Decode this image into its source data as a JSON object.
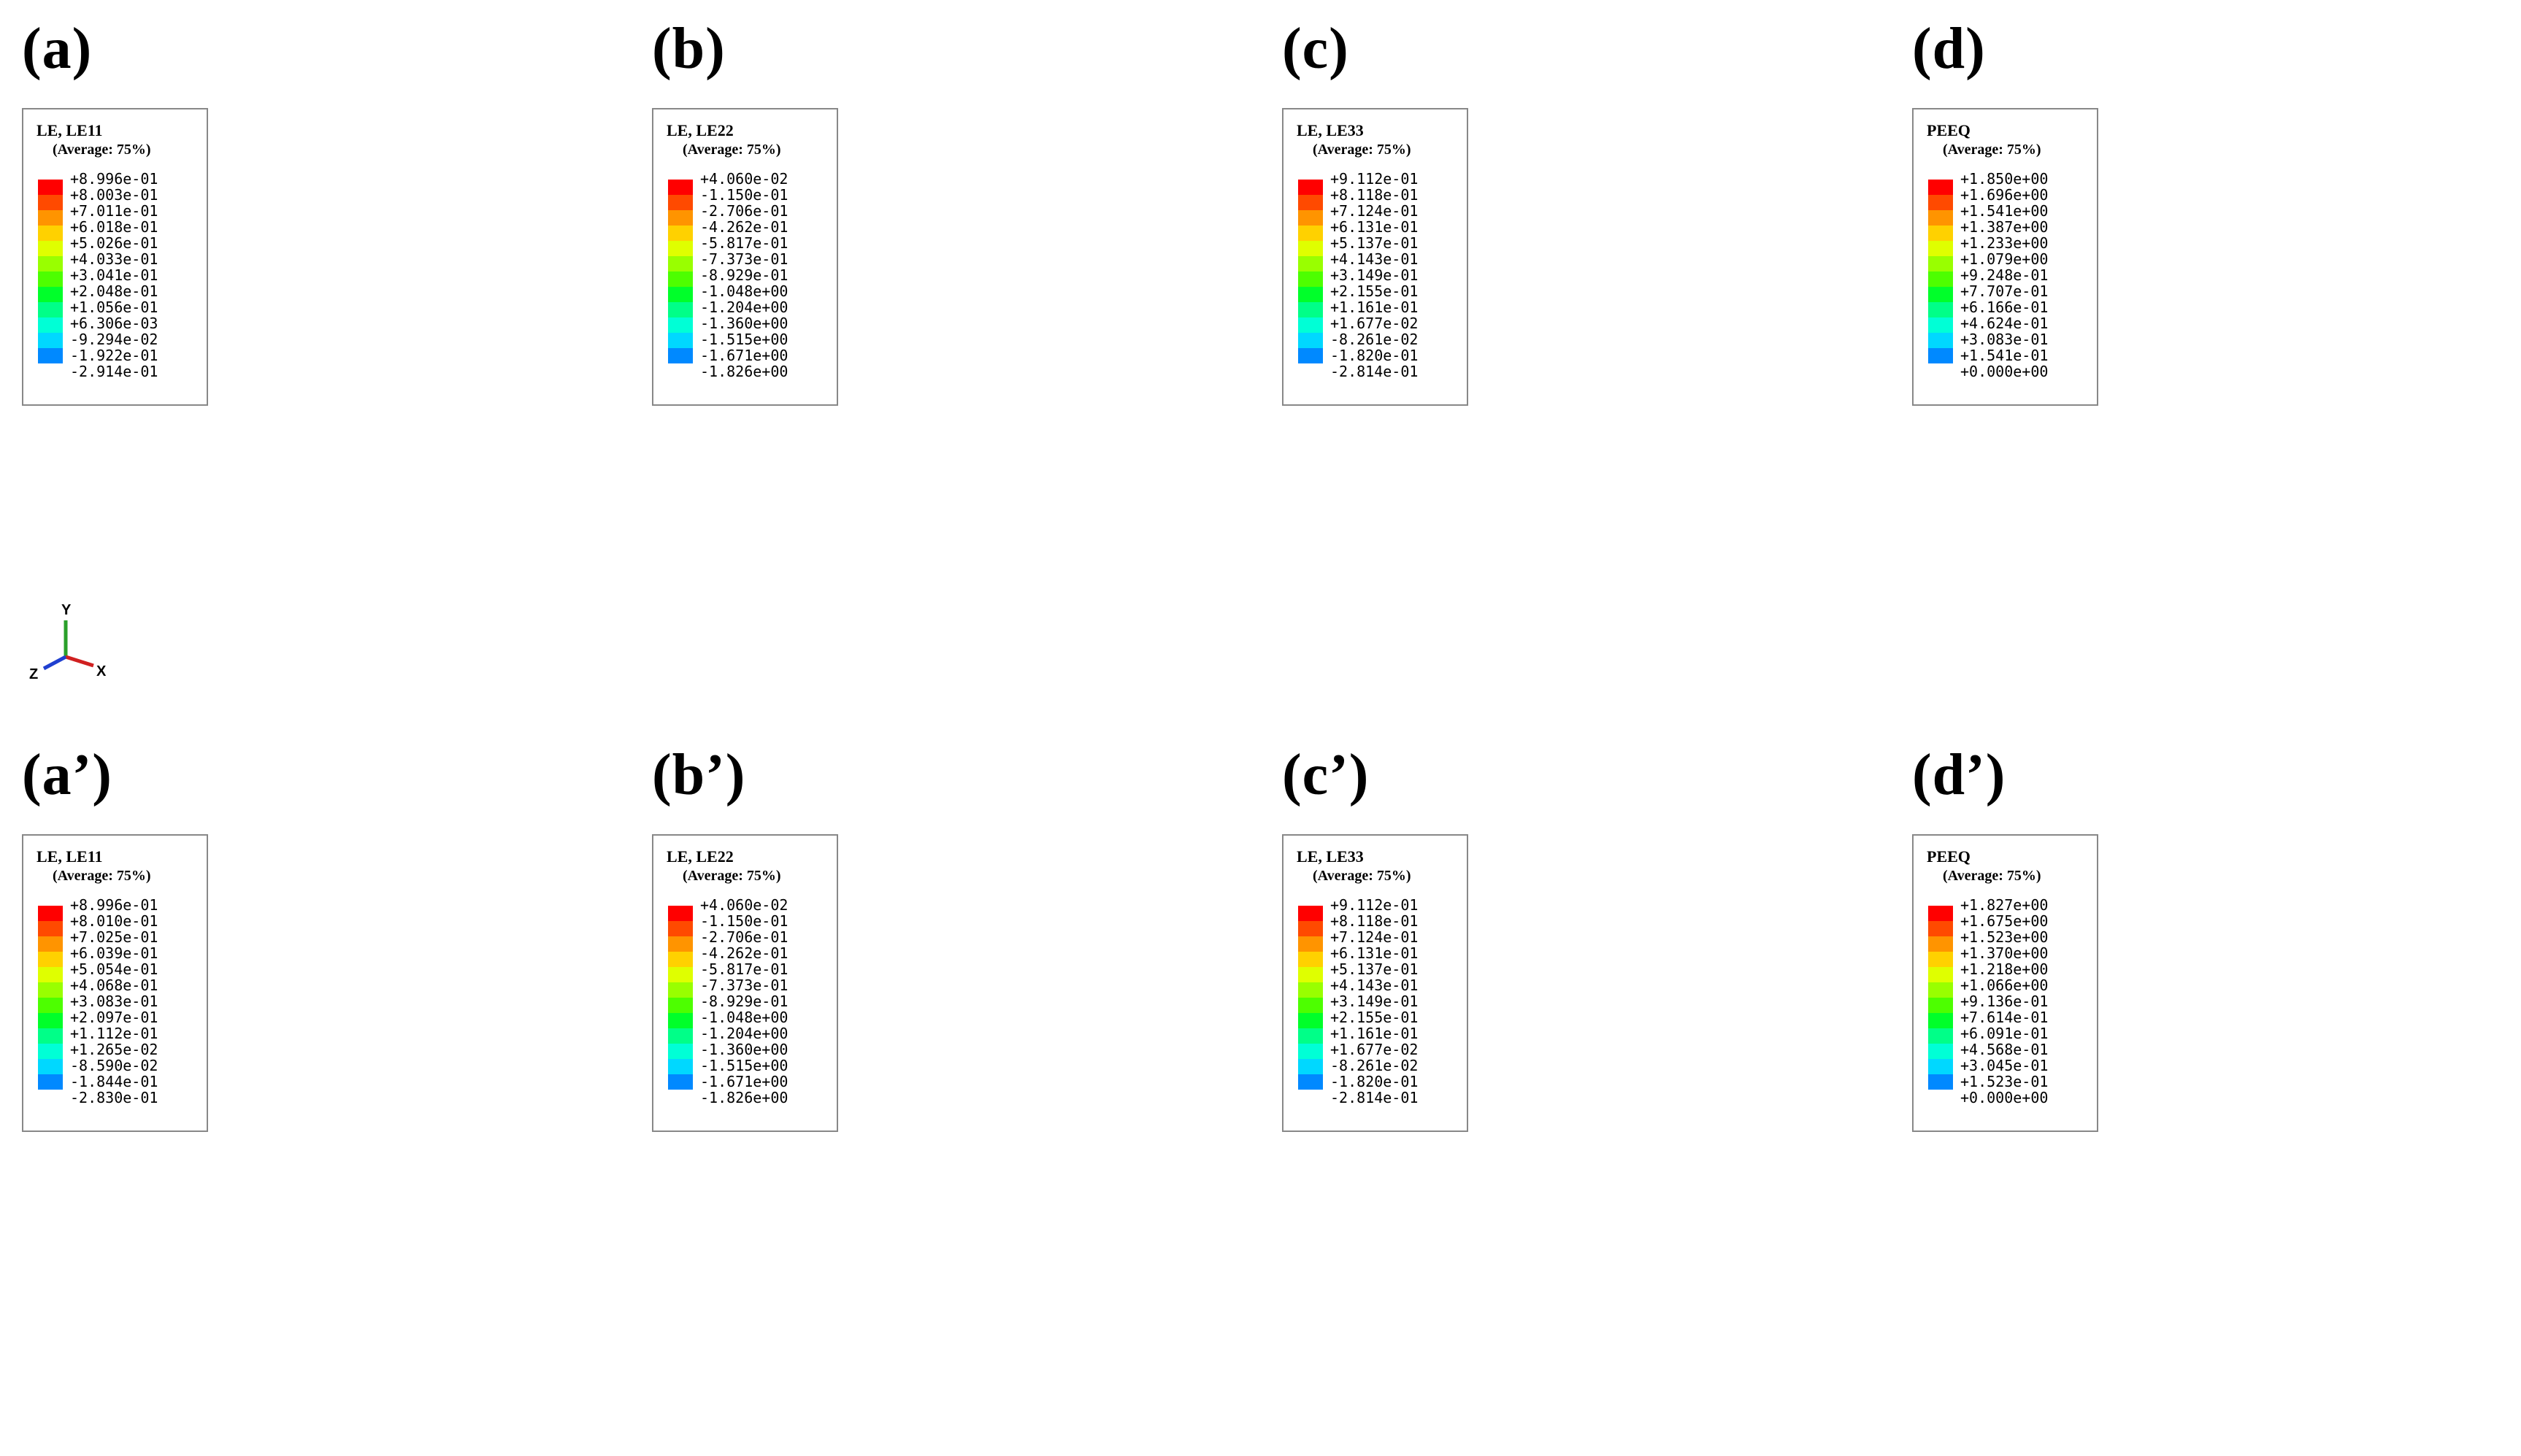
{
  "colormap": [
    "#ff0000",
    "#ff4a00",
    "#ff9400",
    "#ffd100",
    "#dfff00",
    "#99ff00",
    "#4dff00",
    "#00ff2a",
    "#00ff88",
    "#00ffd6",
    "#00d8ff",
    "#0089ff",
    "#0040ff"
  ],
  "panels": [
    {
      "label": "(a)",
      "title": "LE, LE11",
      "subtitle": "(Average: 75%)",
      "values": [
        "+8.996e-01",
        "+8.003e-01",
        "+7.011e-01",
        "+6.018e-01",
        "+5.026e-01",
        "+4.033e-01",
        "+3.041e-01",
        "+2.048e-01",
        "+1.056e-01",
        "+6.306e-03",
        "-9.294e-02",
        "-1.922e-01",
        "-2.914e-01"
      ],
      "view": "full",
      "head": [
        "#7dd43a",
        "#c9e02a",
        "#39b8e6"
      ],
      "shaft": "#3aa6df",
      "hot": ""
    },
    {
      "label": "(b)",
      "title": "LE, LE22",
      "subtitle": "(Average: 75%)",
      "values": [
        "+4.060e-02",
        "-1.150e-01",
        "-2.706e-01",
        "-4.262e-01",
        "-5.817e-01",
        "-7.373e-01",
        "-8.929e-01",
        "-1.048e+00",
        "-1.204e+00",
        "-1.360e+00",
        "-1.515e+00",
        "-1.671e+00",
        "-1.826e+00"
      ],
      "view": "full",
      "head": [
        "#9ad832",
        "#e07a20",
        "#ff1a10"
      ],
      "shaft": "#e52018",
      "hot": ""
    },
    {
      "label": "(c)",
      "title": "LE, LE33",
      "subtitle": "(Average: 75%)",
      "values": [
        "+9.112e-01",
        "+8.118e-01",
        "+7.124e-01",
        "+6.131e-01",
        "+5.137e-01",
        "+4.143e-01",
        "+3.149e-01",
        "+2.155e-01",
        "+1.161e-01",
        "+1.677e-02",
        "-8.261e-02",
        "-1.820e-01",
        "-2.814e-01"
      ],
      "view": "full",
      "head": [
        "#5fcf3a",
        "#8ad838",
        "#3ab6e8"
      ],
      "shaft": "#3aa6df",
      "hot": ""
    },
    {
      "label": "(d)",
      "title": "PEEQ",
      "subtitle": "(Average: 75%)",
      "values": [
        "+1.850e+00",
        "+1.696e+00",
        "+1.541e+00",
        "+1.387e+00",
        "+1.233e+00",
        "+1.079e+00",
        "+9.248e-01",
        "+7.707e-01",
        "+6.166e-01",
        "+4.624e-01",
        "+3.083e-01",
        "+1.541e-01",
        "+0.000e+00"
      ],
      "view": "full",
      "head": [
        "#46d24a",
        "#38d078",
        "#1a30d8"
      ],
      "shaft": "#1a2fd0",
      "hot": ""
    },
    {
      "label": "(a’)",
      "title": "LE, LE11",
      "subtitle": "(Average: 75%)",
      "values": [
        "+8.996e-01",
        "+8.010e-01",
        "+7.025e-01",
        "+6.039e-01",
        "+5.054e-01",
        "+4.068e-01",
        "+3.083e-01",
        "+2.097e-01",
        "+1.112e-01",
        "+1.265e-02",
        "-8.590e-02",
        "-1.844e-01",
        "-2.830e-01"
      ],
      "view": "cut",
      "head": [
        "#8fd638",
        "#c7df2a",
        "#2f7fe0"
      ],
      "shaft": "#3aa6df",
      "hot": "#e0341a"
    },
    {
      "label": "(b’)",
      "title": "LE, LE22",
      "subtitle": "(Average: 75%)",
      "values": [
        "+4.060e-02",
        "-1.150e-01",
        "-2.706e-01",
        "-4.262e-01",
        "-5.817e-01",
        "-7.373e-01",
        "-8.929e-01",
        "-1.048e+00",
        "-1.204e+00",
        "-1.360e+00",
        "-1.515e+00",
        "-1.671e+00",
        "-1.826e+00"
      ],
      "view": "cut",
      "head": [
        "#8fd638",
        "#e88a22",
        "#ff1a10"
      ],
      "shaft": "#e52018",
      "hot": "#1f3ee0"
    },
    {
      "label": "(c’)",
      "title": "LE, LE33",
      "subtitle": "(Average: 75%)",
      "values": [
        "+9.112e-01",
        "+8.118e-01",
        "+7.124e-01",
        "+6.131e-01",
        "+5.137e-01",
        "+4.143e-01",
        "+3.149e-01",
        "+2.155e-01",
        "+1.161e-01",
        "+1.677e-02",
        "-8.261e-02",
        "-1.820e-01",
        "-2.814e-01"
      ],
      "view": "cut",
      "head": [
        "#6fd23a",
        "#a6dc30",
        "#2f6fe0"
      ],
      "shaft": "#3aa6df",
      "hot": "#e0341a"
    },
    {
      "label": "(d’)",
      "title": "PEEQ",
      "subtitle": "(Average: 75%)",
      "values": [
        "+1.827e+00",
        "+1.675e+00",
        "+1.523e+00",
        "+1.370e+00",
        "+1.218e+00",
        "+1.066e+00",
        "+9.136e-01",
        "+7.614e-01",
        "+6.091e-01",
        "+4.568e-01",
        "+3.045e-01",
        "+1.523e-01",
        "+0.000e+00"
      ],
      "view": "cut",
      "head": [
        "#4cd24a",
        "#38c8a0",
        "#1a30d8"
      ],
      "shaft": "#1a2fd0",
      "hot": "#e0341a"
    }
  ],
  "axes": {
    "y": "Y",
    "x": "X",
    "z": "Z"
  }
}
